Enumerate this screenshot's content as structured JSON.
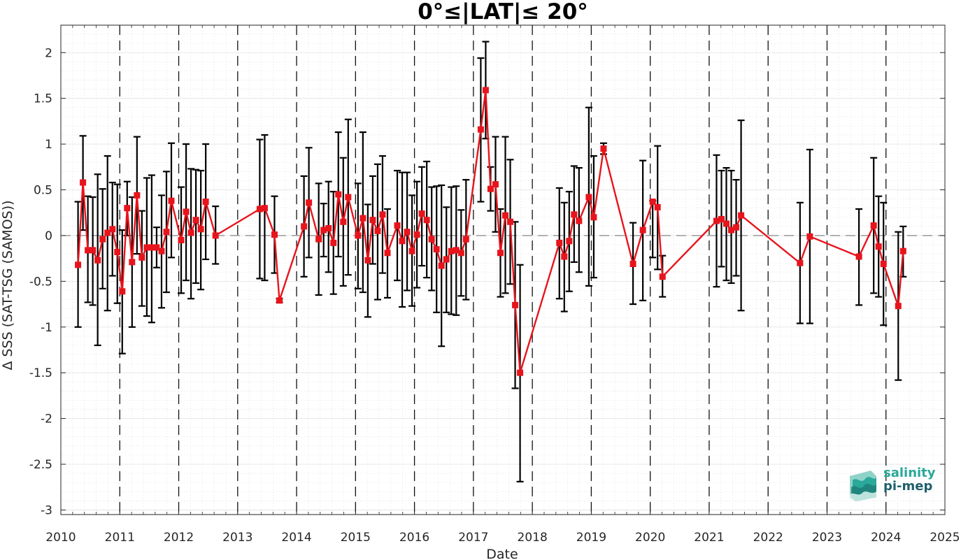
{
  "chart_data": {
    "type": "line",
    "title": "0°≤|LAT|≤ 20°",
    "xlabel": "Date",
    "ylabel": "Δ SSS (SAT-TSG (SAMOS))",
    "xlim": [
      2010,
      2025
    ],
    "ylim": [
      -3.05,
      2.3
    ],
    "x_ticks": [
      "2010",
      "2011",
      "2012",
      "2013",
      "2014",
      "2015",
      "2016",
      "2017",
      "2018",
      "2019",
      "2020",
      "2021",
      "2022",
      "2023",
      "2024",
      "2025"
    ],
    "y_ticks": [
      "2",
      "1.5",
      "1",
      "0.5",
      "0",
      "-0.5",
      "-1",
      "-1.5",
      "-2",
      "-2.5",
      "-3"
    ],
    "grid": true,
    "legend": "none",
    "reference_line": {
      "y": 0,
      "style": "dashed"
    },
    "year_boundaries_dashed": true,
    "series": [
      {
        "style": "red line with square markers and black error bars",
        "color": "#e8141c",
        "errorbar_color": "#000000",
        "points": [
          {
            "x": "2010-04",
            "y": -0.32,
            "lo": -1.0,
            "hi": 0.37
          },
          {
            "x": "2010-05",
            "y": 0.58,
            "lo": 0.06,
            "hi": 1.09
          },
          {
            "x": "2010-06",
            "y": -0.16,
            "lo": -0.73,
            "hi": 0.43
          },
          {
            "x": "2010-07",
            "y": -0.16,
            "lo": -0.76,
            "hi": 0.42
          },
          {
            "x": "2010-08",
            "y": -0.27,
            "lo": -1.2,
            "hi": 0.67
          },
          {
            "x": "2010-09",
            "y": -0.04,
            "lo": -0.58,
            "hi": 0.51
          },
          {
            "x": "2010-10",
            "y": 0.03,
            "lo": -0.82,
            "hi": 0.87
          },
          {
            "x": "2010-11",
            "y": 0.07,
            "lo": -0.44,
            "hi": 0.58
          },
          {
            "x": "2010-12",
            "y": -0.18,
            "lo": -0.74,
            "hi": 0.56
          },
          {
            "x": "2011-01",
            "y": -0.61,
            "lo": -1.29,
            "hi": 0.06
          },
          {
            "x": "2011-02",
            "y": 0.3,
            "lo": 0.0,
            "hi": 0.59
          },
          {
            "x": "2011-03",
            "y": -0.29,
            "lo": -1.0,
            "hi": 0.42
          },
          {
            "x": "2011-04",
            "y": 0.44,
            "lo": -0.2,
            "hi": 1.08
          },
          {
            "x": "2011-05",
            "y": -0.24,
            "lo": -0.77,
            "hi": 0.27
          },
          {
            "x": "2011-06",
            "y": -0.13,
            "lo": -0.88,
            "hi": 0.63
          },
          {
            "x": "2011-07",
            "y": -0.13,
            "lo": -0.95,
            "hi": 0.66
          },
          {
            "x": "2011-08",
            "y": -0.13,
            "lo": -0.35,
            "hi": 0.09
          },
          {
            "x": "2011-09",
            "y": -0.17,
            "lo": -0.79,
            "hi": 0.44
          },
          {
            "x": "2011-10",
            "y": 0.04,
            "lo": -0.62,
            "hi": 0.7
          },
          {
            "x": "2011-11",
            "y": 0.38,
            "lo": -0.24,
            "hi": 1.01
          },
          {
            "x": "2012-01",
            "y": -0.05,
            "lo": -0.63,
            "hi": 0.53
          },
          {
            "x": "2012-02",
            "y": 0.26,
            "lo": -0.49,
            "hi": 1.0
          },
          {
            "x": "2012-03",
            "y": 0.03,
            "lo": -0.69,
            "hi": 0.73
          },
          {
            "x": "2012-04",
            "y": 0.17,
            "lo": -0.52,
            "hi": 0.72
          },
          {
            "x": "2012-05",
            "y": 0.07,
            "lo": -0.59,
            "hi": 0.71
          },
          {
            "x": "2012-06",
            "y": 0.37,
            "lo": -0.26,
            "hi": 1.0
          },
          {
            "x": "2012-08",
            "y": 0.0,
            "lo": -0.31,
            "hi": 0.32
          },
          {
            "x": "2013-05",
            "y": 0.29,
            "lo": -0.47,
            "hi": 1.05
          },
          {
            "x": "2013-06",
            "y": 0.3,
            "lo": -0.49,
            "hi": 1.1
          },
          {
            "x": "2013-08",
            "y": 0.01,
            "lo": -0.41,
            "hi": 0.43
          },
          {
            "x": "2013-09",
            "y": -0.71,
            "lo": -0.73,
            "hi": -0.69
          },
          {
            "x": "2014-02",
            "y": 0.1,
            "lo": -0.45,
            "hi": 0.65
          },
          {
            "x": "2014-03",
            "y": 0.36,
            "lo": -0.24,
            "hi": 0.96
          },
          {
            "x": "2014-05",
            "y": -0.04,
            "lo": -0.65,
            "hi": 0.57
          },
          {
            "x": "2014-06",
            "y": 0.06,
            "lo": -0.23,
            "hi": 0.35
          },
          {
            "x": "2014-07",
            "y": 0.08,
            "lo": -0.4,
            "hi": 0.59
          },
          {
            "x": "2014-08",
            "y": -0.08,
            "lo": -0.64,
            "hi": 0.48
          },
          {
            "x": "2014-09",
            "y": 0.45,
            "lo": -0.23,
            "hi": 1.13
          },
          {
            "x": "2014-10",
            "y": 0.15,
            "lo": -0.55,
            "hi": 0.85
          },
          {
            "x": "2014-11",
            "y": 0.42,
            "lo": -0.43,
            "hi": 1.27
          },
          {
            "x": "2015-01",
            "y": 0.0,
            "lo": -0.58,
            "hi": 0.57
          },
          {
            "x": "2015-02",
            "y": 0.19,
            "lo": -0.62,
            "hi": 1.13
          },
          {
            "x": "2015-03",
            "y": -0.27,
            "lo": -0.89,
            "hi": 0.34
          },
          {
            "x": "2015-04",
            "y": 0.17,
            "lo": -0.31,
            "hi": 0.65
          },
          {
            "x": "2015-05",
            "y": 0.05,
            "lo": -0.7,
            "hi": 0.78
          },
          {
            "x": "2015-06",
            "y": 0.23,
            "lo": -0.41,
            "hi": 0.87
          },
          {
            "x": "2015-07",
            "y": -0.19,
            "lo": -0.68,
            "hi": 0.29
          },
          {
            "x": "2015-09",
            "y": 0.11,
            "lo": -0.49,
            "hi": 0.71
          },
          {
            "x": "2015-10",
            "y": -0.06,
            "lo": -0.78,
            "hi": 0.69
          },
          {
            "x": "2015-11",
            "y": 0.04,
            "lo": -0.6,
            "hi": 0.69
          },
          {
            "x": "2015-12",
            "y": -0.17,
            "lo": -0.77,
            "hi": 0.44
          },
          {
            "x": "2016-01",
            "y": 0.01,
            "lo": -0.57,
            "hi": 0.59
          },
          {
            "x": "2016-02",
            "y": 0.24,
            "lo": -0.33,
            "hi": 0.75
          },
          {
            "x": "2016-03",
            "y": 0.17,
            "lo": -0.46,
            "hi": 0.81
          },
          {
            "x": "2016-04",
            "y": -0.04,
            "lo": -0.6,
            "hi": 0.53
          },
          {
            "x": "2016-05",
            "y": -0.15,
            "lo": -0.84,
            "hi": 0.54
          },
          {
            "x": "2016-06",
            "y": -0.33,
            "lo": -1.21,
            "hi": 0.55
          },
          {
            "x": "2016-07",
            "y": -0.26,
            "lo": -0.84,
            "hi": 0.31
          },
          {
            "x": "2016-08",
            "y": -0.17,
            "lo": -0.86,
            "hi": 0.53
          },
          {
            "x": "2016-09",
            "y": -0.16,
            "lo": -0.87,
            "hi": 0.54
          },
          {
            "x": "2016-10",
            "y": -0.19,
            "lo": -0.66,
            "hi": 0.28
          },
          {
            "x": "2016-11",
            "y": -0.04,
            "lo": -0.7,
            "hi": 0.61
          },
          {
            "x": "2017-02",
            "y": 1.16,
            "lo": 0.37,
            "hi": 1.94
          },
          {
            "x": "2017-03",
            "y": 1.59,
            "lo": 1.06,
            "hi": 2.12
          },
          {
            "x": "2017-04",
            "y": 0.51,
            "lo": 0.27,
            "hi": 0.75
          },
          {
            "x": "2017-05",
            "y": 0.56,
            "lo": 0.04,
            "hi": 1.08
          },
          {
            "x": "2017-06",
            "y": -0.19,
            "lo": -0.67,
            "hi": 0.29
          },
          {
            "x": "2017-07",
            "y": 0.22,
            "lo": -0.63,
            "hi": 1.08
          },
          {
            "x": "2017-08",
            "y": 0.15,
            "lo": -0.53,
            "hi": 0.83
          },
          {
            "x": "2017-09",
            "y": -0.76,
            "lo": -1.67,
            "hi": 0.15
          },
          {
            "x": "2017-10",
            "y": -1.5,
            "lo": -2.69,
            "hi": -0.32
          },
          {
            "x": "2018-06",
            "y": -0.08,
            "lo": -0.69,
            "hi": 0.52
          },
          {
            "x": "2018-07",
            "y": -0.23,
            "lo": -0.83,
            "hi": 0.36
          },
          {
            "x": "2018-08",
            "y": -0.06,
            "lo": -0.61,
            "hi": 0.48
          },
          {
            "x": "2018-09",
            "y": 0.23,
            "lo": -0.29,
            "hi": 0.76
          },
          {
            "x": "2018-10",
            "y": 0.16,
            "lo": -0.4,
            "hi": 0.74
          },
          {
            "x": "2018-12",
            "y": 0.42,
            "lo": -0.55,
            "hi": 1.4
          },
          {
            "x": "2019-01",
            "y": 0.2,
            "lo": -0.46,
            "hi": 0.87
          },
          {
            "x": "2019-03",
            "y": 0.95,
            "lo": 0.89,
            "hi": 1.01
          },
          {
            "x": "2019-09",
            "y": -0.31,
            "lo": -0.75,
            "hi": 0.14
          },
          {
            "x": "2019-11",
            "y": 0.06,
            "lo": -0.71,
            "hi": 0.82
          },
          {
            "x": "2020-01",
            "y": 0.37,
            "lo": -0.24,
            "hi": 0.38
          },
          {
            "x": "2020-02",
            "y": 0.31,
            "lo": -0.37,
            "hi": 0.98
          },
          {
            "x": "2020-03",
            "y": -0.45,
            "lo": -0.67,
            "hi": -0.22
          },
          {
            "x": "2021-02",
            "y": 0.16,
            "lo": -0.56,
            "hi": 0.88
          },
          {
            "x": "2021-03",
            "y": 0.18,
            "lo": -0.34,
            "hi": 0.71
          },
          {
            "x": "2021-04",
            "y": 0.13,
            "lo": -0.49,
            "hi": 0.74
          },
          {
            "x": "2021-05",
            "y": 0.06,
            "lo": -0.52,
            "hi": 0.71
          },
          {
            "x": "2021-06",
            "y": 0.09,
            "lo": -0.44,
            "hi": 0.61
          },
          {
            "x": "2021-07",
            "y": 0.22,
            "lo": -0.82,
            "hi": 1.26
          },
          {
            "x": "2022-07",
            "y": -0.3,
            "lo": -0.96,
            "hi": 0.36
          },
          {
            "x": "2022-09",
            "y": -0.01,
            "lo": -0.96,
            "hi": 0.94
          },
          {
            "x": "2023-07",
            "y": -0.23,
            "lo": -0.76,
            "hi": 0.29
          },
          {
            "x": "2023-10",
            "y": 0.11,
            "lo": -0.63,
            "hi": 0.85
          },
          {
            "x": "2023-11",
            "y": -0.12,
            "lo": -0.67,
            "hi": 0.43
          },
          {
            "x": "2023-12",
            "y": -0.31,
            "lo": -0.98,
            "hi": 0.36
          },
          {
            "x": "2024-03",
            "y": -0.77,
            "lo": -1.58,
            "hi": 0.04
          },
          {
            "x": "2024-04",
            "y": -0.17,
            "lo": -0.45,
            "hi": 0.1
          }
        ]
      }
    ]
  },
  "logo": {
    "line1": "salinity",
    "line2": "pi-mep",
    "color1": "#2aa89a",
    "color2": "#1f5f6b"
  }
}
